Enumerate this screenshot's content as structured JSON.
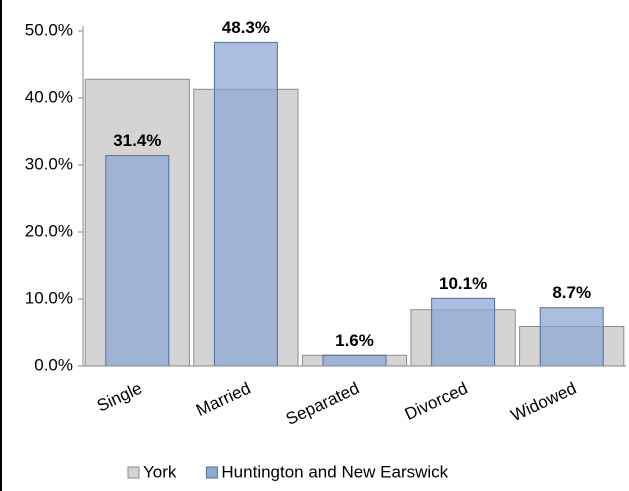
{
  "chart_data": {
    "type": "overlap-bar",
    "categories": [
      "Single",
      "Married",
      "Separated",
      "Divorced",
      "Widowed"
    ],
    "series": [
      {
        "name": "York",
        "color": "#d4d4d4",
        "values": [
          42.8,
          41.3,
          1.6,
          8.4,
          5.9
        ]
      },
      {
        "name": "Huntington and New Earswick",
        "color": "#8eaad6",
        "values": [
          31.4,
          48.3,
          1.6,
          10.1,
          8.7
        ],
        "value_labels": [
          "31.4%",
          "48.3%",
          "1.6%",
          "10.1%",
          "8.7%"
        ]
      }
    ],
    "ylim": [
      0,
      50
    ],
    "yticks": [
      {
        "value": 0,
        "label": "0.0%"
      },
      {
        "value": 10,
        "label": "10.0%"
      },
      {
        "value": 20,
        "label": "20.0%"
      },
      {
        "value": 30,
        "label": "30.0%"
      },
      {
        "value": 40,
        "label": "40.0%"
      },
      {
        "value": 50,
        "label": "50.0%"
      }
    ],
    "grid": false,
    "legend": "bottom"
  }
}
